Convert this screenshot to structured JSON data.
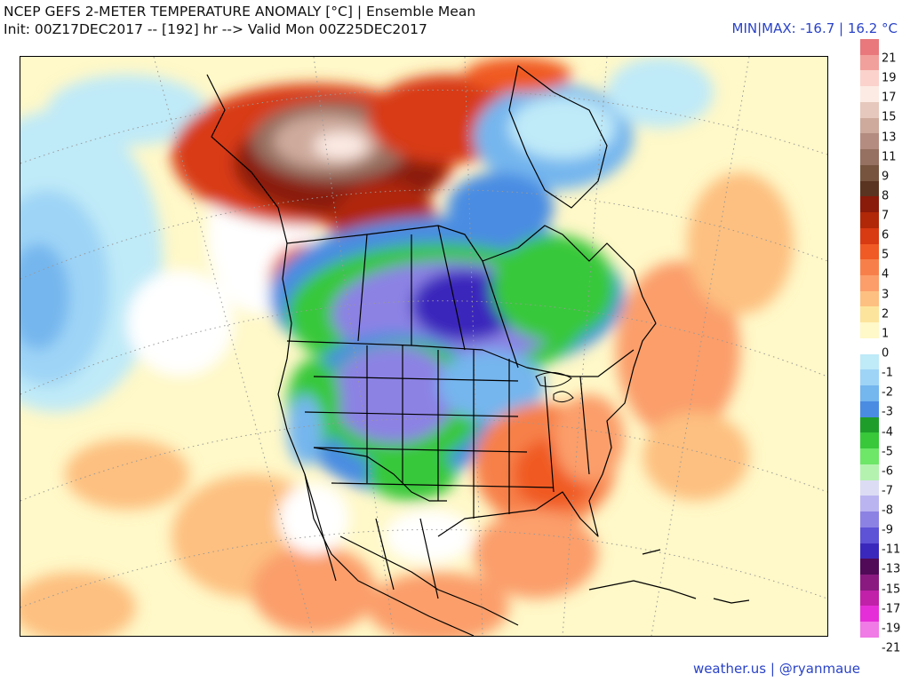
{
  "header": {
    "title_line1": "NCEP GEFS 2-METER TEMPERATURE ANOMALY [°C] | Ensemble Mean",
    "title_line2": "Init: 00Z17DEC2017 -- [192] hr --> Valid Mon 00Z25DEC2017",
    "minmax": "MIN|MAX: -16.7 | 16.2 °C"
  },
  "footer": {
    "credit": "weather.us | @ryanmaue"
  },
  "colorbar": {
    "swatches": [
      "#e8787c",
      "#f2a09c",
      "#fbd2cc",
      "#fcebe4",
      "#e6c8bc",
      "#ceaa9c",
      "#b48c80",
      "#967060",
      "#76543e",
      "#5a3420",
      "#8a1a0a",
      "#b02808",
      "#d83a12",
      "#f05a24",
      "#f7804a",
      "#fb9e6a",
      "#fdc080",
      "#fde49c",
      "#fff8c8",
      "#ffffff",
      "#bfeaf8",
      "#9ed4f6",
      "#74b6ee",
      "#4a8ce2",
      "#1f9d2a",
      "#38c83a",
      "#6ee668",
      "#b4f2b0",
      "#dcdcf4",
      "#bab4f0",
      "#8c82e4",
      "#5e52d6",
      "#3a28bc",
      "#500a58",
      "#8a1a80",
      "#c021a8",
      "#e62ed8",
      "#f07ae6"
    ],
    "ticks": [
      "21",
      "19",
      "17",
      "15",
      "13",
      "11",
      "9",
      "8",
      "7",
      "6",
      "5",
      "4",
      "3",
      "2",
      "1",
      "0",
      "-1",
      "-2",
      "-3",
      "-4",
      "-5",
      "-6",
      "-7",
      "-8",
      "-9",
      "-11",
      "-13",
      "-15",
      "-17",
      "-19",
      "-21"
    ]
  }
}
